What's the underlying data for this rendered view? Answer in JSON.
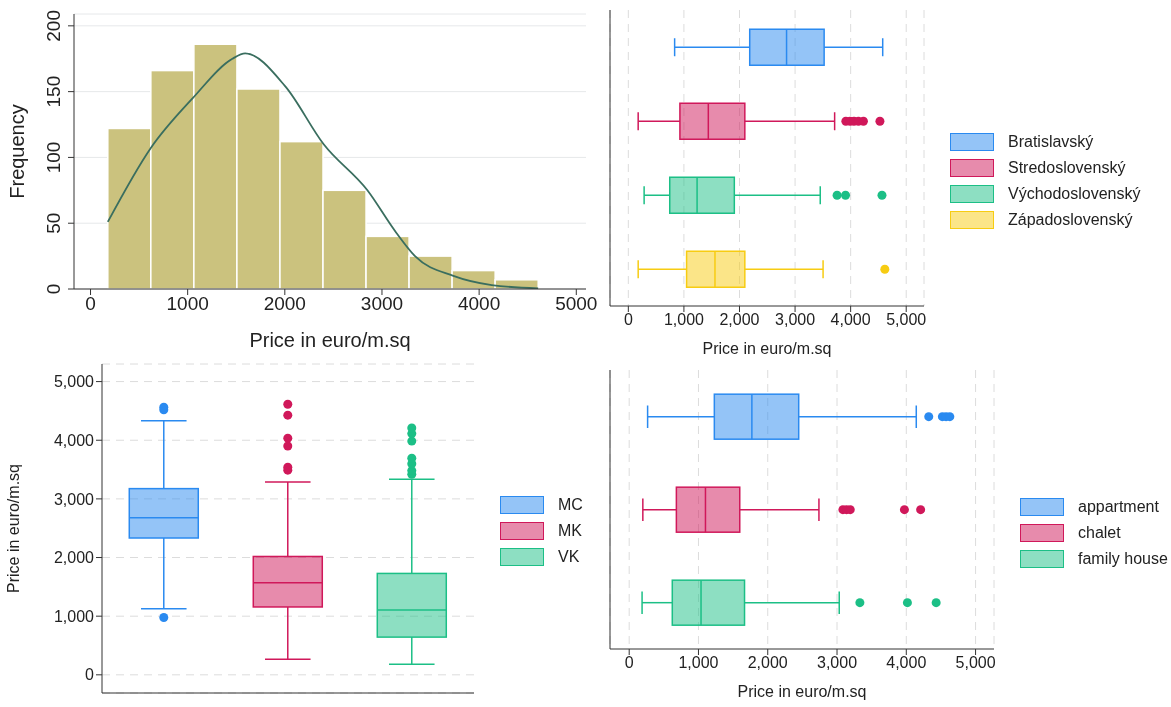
{
  "chart_data": [
    {
      "type": "histogram",
      "xlabel": "Price in euro/m.sq",
      "ylabel": "Frequency",
      "bins": [
        178,
        621,
        1064,
        1507,
        1950,
        2393,
        2836,
        3279,
        3722,
        4165,
        4608
      ],
      "values": [
        122,
        166,
        186,
        152,
        112,
        75,
        40,
        25,
        14,
        7
      ],
      "color": "#cbc27e",
      "series": [
        {
          "type": "line",
          "color": "#3a6e5f",
          "x": [
            178,
            619,
            1052,
            1460,
            1592,
            2005,
            2400,
            2850,
            3145,
            3340,
            3735,
            4130,
            4608
          ],
          "values": [
            51,
            107,
            145,
            175,
            179,
            154,
            110,
            75,
            43,
            25,
            10,
            3,
            0.5
          ]
        }
      ],
      "xlim": [
        -170,
        5100
      ],
      "xticks": [
        0,
        1000,
        2000,
        3000,
        4000,
        5000
      ],
      "ylim": [
        0,
        209
      ],
      "yticks": [
        0,
        50,
        100,
        150,
        200
      ],
      "grid": "y"
    },
    {
      "type": "box",
      "orientation": "horizontal",
      "xlabel": "Price in euro/m.sq",
      "categories": [
        null,
        null,
        null,
        null
      ],
      "series": [
        {
          "name": "Bratislavský",
          "color": "#2a8af0",
          "boxes": [
            {
              "low": 833,
              "q1": 2184,
              "median": 2847,
              "q3": 3523,
              "high": 4577
            },
            null,
            null,
            null
          ]
        },
        {
          "name": "Stredoslovenský",
          "color": "#d0185a",
          "boxes": [
            null,
            {
              "low": 177,
              "q1": 928,
              "median": 1439,
              "q3": 2096,
              "high": 3712,
              "outliers": [
                3914,
                3990,
                4060,
                4140,
                4230,
                4527
              ]
            },
            null,
            null
          ]
        },
        {
          "name": "Východoslovenský",
          "color": "#1cbf86",
          "boxes": [
            null,
            null,
            {
              "low": 284,
              "q1": 745,
              "median": 1237,
              "q3": 1907,
              "high": 3453,
              "outliers": [
                3756,
                3908,
                4564
              ]
            },
            null
          ]
        },
        {
          "name": "Západoslovenský",
          "color": "#f7cc12",
          "boxes": [
            null,
            null,
            null,
            {
              "low": 177,
              "q1": 1048,
              "median": 1559,
              "q3": 2096,
              "high": 3504,
              "outliers": [
                4615
              ]
            }
          ]
        }
      ],
      "xlim": [
        -330,
        5320
      ],
      "xticks": [
        0,
        {
          "value": 1000,
          "label": "1,000"
        },
        {
          "value": 2000,
          "label": "2,000"
        },
        {
          "value": 3000,
          "label": "3,000"
        },
        {
          "value": 4000,
          "label": "4,000"
        },
        {
          "value": 5000,
          "label": "5,000"
        }
      ],
      "tick_labels": "x",
      "grid": "x",
      "legend": "right"
    },
    {
      "type": "box",
      "ylabel": "Price in euro/m.sq",
      "categories": [
        null,
        null,
        null
      ],
      "series": [
        {
          "name": "MC",
          "color": "#2a8af0",
          "boxes": [
            {
              "low": 1125,
              "q1": 2333,
              "median": 2680,
              "q3": 3175,
              "high": 4332,
              "outliers": [
                977,
                4518,
                4563
              ]
            },
            null,
            null
          ]
        },
        {
          "name": "MK",
          "color": "#d0185a",
          "boxes": [
            null,
            {
              "low": 264,
              "q1": 1157,
              "median": 1568,
              "q3": 2018,
              "high": 3290,
              "outliers": [
                3490,
                3541,
                3901,
                4036,
                4428,
                4614
              ]
            },
            null
          ]
        },
        {
          "name": "VK",
          "color": "#1cbf86",
          "boxes": [
            null,
            null,
            {
              "low": 180,
              "q1": 643,
              "median": 1105,
              "q3": 1729,
              "high": 3335,
              "outliers": [
                3419,
                3483,
                3599,
                3695,
                3985,
                4113,
                4209
              ]
            }
          ]
        }
      ],
      "ylim": [
        -310,
        5300
      ],
      "yticks": [
        0,
        {
          "value": 1000,
          "label": "1,000"
        },
        {
          "value": 2000,
          "label": "2,000"
        },
        {
          "value": 3000,
          "label": "3,000"
        },
        {
          "value": 4000,
          "label": "4,000"
        },
        {
          "value": 5000,
          "label": "5,000"
        }
      ],
      "tick_labels": "y",
      "grid": "y",
      "legend": "right"
    },
    {
      "type": "box",
      "orientation": "horizontal",
      "xlabel": "Price in euro/m.sq",
      "categories": [
        null,
        null,
        null
      ],
      "series": [
        {
          "name": "appartment",
          "color": "#2a8af0",
          "boxes": [
            {
              "low": 266,
              "q1": 1229,
              "median": 1771,
              "q3": 2447,
              "high": 4144,
              "outliers": [
                4324,
                4521,
                4574,
                4628
              ]
            },
            null,
            null
          ]
        },
        {
          "name": "chalet",
          "color": "#d0185a",
          "boxes": [
            null,
            {
              "low": 197,
              "q1": 681,
              "median": 1101,
              "q3": 1596,
              "high": 2739,
              "outliers": [
                3085,
                3138,
                3191,
                3973,
                4207
              ]
            },
            null
          ]
        },
        {
          "name": "family house",
          "color": "#1cbf86",
          "boxes": [
            null,
            null,
            {
              "low": 186,
              "q1": 622,
              "median": 1037,
              "q3": 1665,
              "high": 3032,
              "outliers": [
                3330,
                4016,
                4431
              ]
            }
          ]
        }
      ],
      "xlim": [
        -277,
        5266
      ],
      "xticks": [
        0,
        {
          "value": 1000,
          "label": "1,000"
        },
        {
          "value": 2000,
          "label": "2,000"
        },
        {
          "value": 3000,
          "label": "3,000"
        },
        {
          "value": 4000,
          "label": "4,000"
        },
        {
          "value": 5000,
          "label": "5,000"
        }
      ],
      "tick_labels": "x",
      "grid": "x",
      "legend": "right"
    }
  ]
}
